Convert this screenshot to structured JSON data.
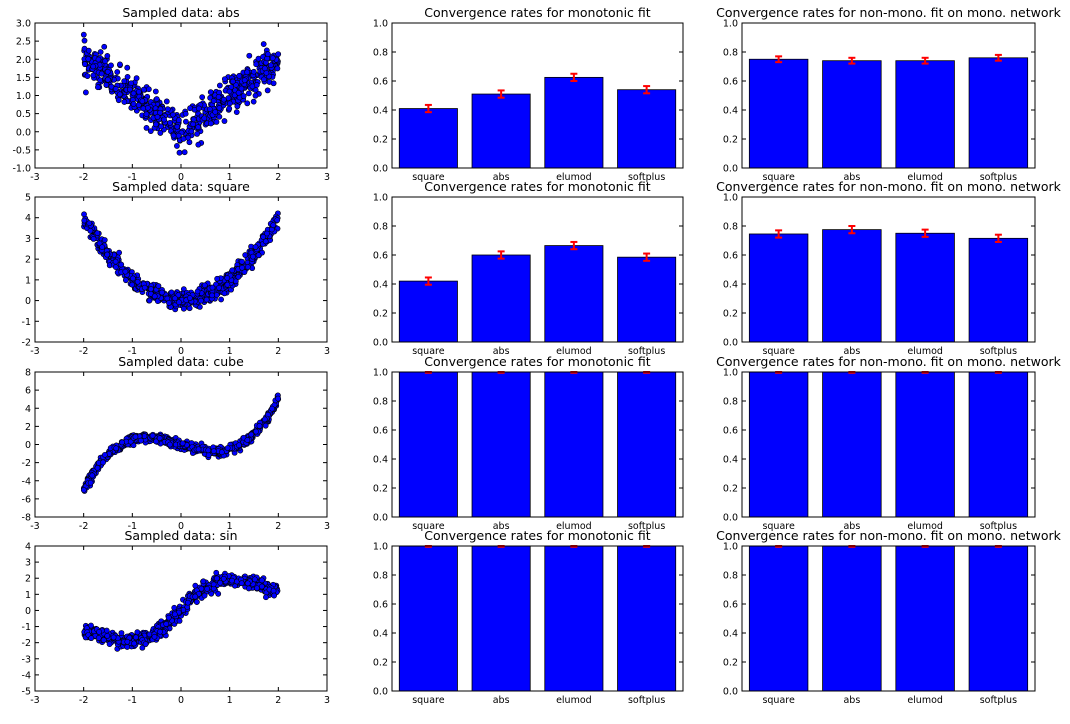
{
  "chart_data": [
    {
      "type": "scatter",
      "title": "Sampled data: abs",
      "function": "abs",
      "xlim": [
        -3,
        3
      ],
      "ylim": [
        -1.0,
        3.0
      ],
      "xticks": [
        "-3",
        "-2",
        "-1",
        "0",
        "1",
        "2",
        "3"
      ],
      "yticks": [
        "-1.0",
        "-0.5",
        "0.0",
        "0.5",
        "1.0",
        "1.5",
        "2.0",
        "2.5",
        "3.0"
      ],
      "x_range": [
        -2,
        2
      ],
      "noise": 0.25,
      "n_points": 600,
      "marker_color": "#0000ff"
    },
    {
      "type": "bar",
      "title": "Convergence rates for monotonic fit",
      "categories": [
        "square",
        "abs",
        "elumod",
        "softplus"
      ],
      "values": [
        0.41,
        0.51,
        0.625,
        0.54
      ],
      "errors": [
        0.025,
        0.025,
        0.025,
        0.025
      ],
      "ylim": [
        0.0,
        1.0
      ],
      "yticks": [
        "0.0",
        "0.2",
        "0.4",
        "0.6",
        "0.8",
        "1.0"
      ],
      "bar_color": "#0000ff",
      "error_color": "#ff0000"
    },
    {
      "type": "bar",
      "title": "Convergence rates for non-mono. fit on mono. network",
      "categories": [
        "square",
        "abs",
        "elumod",
        "softplus"
      ],
      "values": [
        0.75,
        0.74,
        0.74,
        0.76
      ],
      "errors": [
        0.02,
        0.02,
        0.02,
        0.02
      ],
      "ylim": [
        0.0,
        1.0
      ],
      "yticks": [
        "0.0",
        "0.2",
        "0.4",
        "0.6",
        "0.8",
        "1.0"
      ],
      "bar_color": "#0000ff",
      "error_color": "#ff0000"
    },
    {
      "type": "scatter",
      "title": "Sampled data: square",
      "function": "square",
      "xlim": [
        -3,
        3
      ],
      "ylim": [
        -2,
        5
      ],
      "xticks": [
        "-3",
        "-2",
        "-1",
        "0",
        "1",
        "2",
        "3"
      ],
      "yticks": [
        "-2",
        "-1",
        "0",
        "1",
        "2",
        "3",
        "4",
        "5"
      ],
      "x_range": [
        -2,
        2
      ],
      "noise": 0.22,
      "n_points": 600,
      "marker_color": "#0000ff"
    },
    {
      "type": "bar",
      "title": "Convergence rates for monotonic fit",
      "categories": [
        "square",
        "abs",
        "elumod",
        "softplus"
      ],
      "values": [
        0.42,
        0.6,
        0.665,
        0.585
      ],
      "errors": [
        0.025,
        0.025,
        0.025,
        0.025
      ],
      "ylim": [
        0.0,
        1.0
      ],
      "yticks": [
        "0.0",
        "0.2",
        "0.4",
        "0.6",
        "0.8",
        "1.0"
      ],
      "bar_color": "#0000ff",
      "error_color": "#ff0000"
    },
    {
      "type": "bar",
      "title": "Convergence rates for non-mono. fit on mono. network",
      "categories": [
        "square",
        "abs",
        "elumod",
        "softplus"
      ],
      "values": [
        0.745,
        0.775,
        0.75,
        0.715
      ],
      "errors": [
        0.025,
        0.025,
        0.025,
        0.025
      ],
      "ylim": [
        0.0,
        1.0
      ],
      "yticks": [
        "0.0",
        "0.2",
        "0.4",
        "0.6",
        "0.8",
        "1.0"
      ],
      "bar_color": "#0000ff",
      "error_color": "#ff0000"
    },
    {
      "type": "scatter",
      "title": "Sampled data: cube",
      "function": "cube",
      "xlim": [
        -3,
        3
      ],
      "ylim": [
        -8,
        8
      ],
      "xticks": [
        "-3",
        "-2",
        "-1",
        "0",
        "1",
        "2",
        "3"
      ],
      "yticks": [
        "-8",
        "-6",
        "-4",
        "-2",
        "0",
        "2",
        "4",
        "6",
        "8"
      ],
      "x_range": [
        -2,
        2
      ],
      "noise": 0.25,
      "n_points": 600,
      "marker_color": "#0000ff"
    },
    {
      "type": "bar",
      "title": "Convergence rates for monotonic fit",
      "categories": [
        "square",
        "abs",
        "elumod",
        "softplus"
      ],
      "values": [
        1.0,
        1.0,
        1.0,
        1.0
      ],
      "errors": [
        0.005,
        0.005,
        0.005,
        0.005
      ],
      "ylim": [
        0.0,
        1.0
      ],
      "yticks": [
        "0.0",
        "0.2",
        "0.4",
        "0.6",
        "0.8",
        "1.0"
      ],
      "bar_color": "#0000ff",
      "error_color": "#ff0000"
    },
    {
      "type": "bar",
      "title": "Convergence rates for non-mono. fit on mono. network",
      "categories": [
        "square",
        "abs",
        "elumod",
        "softplus"
      ],
      "values": [
        1.0,
        1.0,
        1.0,
        1.0
      ],
      "errors": [
        0.005,
        0.005,
        0.005,
        0.005
      ],
      "ylim": [
        0.0,
        1.0
      ],
      "yticks": [
        "0.0",
        "0.2",
        "0.4",
        "0.6",
        "0.8",
        "1.0"
      ],
      "bar_color": "#0000ff",
      "error_color": "#ff0000"
    },
    {
      "type": "scatter",
      "title": "Sampled data: sin",
      "function": "sin",
      "xlim": [
        -3,
        3
      ],
      "ylim": [
        -5,
        4
      ],
      "xticks": [
        "-3",
        "-2",
        "-1",
        "0",
        "1",
        "2",
        "3"
      ],
      "yticks": [
        "-5",
        "-4",
        "-3",
        "-2",
        "-1",
        "0",
        "1",
        "2",
        "3",
        "4"
      ],
      "x_range": [
        -2,
        2
      ],
      "noise": 0.22,
      "n_points": 600,
      "marker_color": "#0000ff"
    },
    {
      "type": "bar",
      "title": "Convergence rates for monotonic fit",
      "categories": [
        "square",
        "abs",
        "elumod",
        "softplus"
      ],
      "values": [
        1.0,
        1.0,
        1.0,
        1.0
      ],
      "errors": [
        0.005,
        0.005,
        0.005,
        0.005
      ],
      "ylim": [
        0.0,
        1.0
      ],
      "yticks": [
        "0.0",
        "0.2",
        "0.4",
        "0.6",
        "0.8",
        "1.0"
      ],
      "bar_color": "#0000ff",
      "error_color": "#ff0000"
    },
    {
      "type": "bar",
      "title": "Convergence rates for non-mono. fit on mono. network",
      "categories": [
        "square",
        "abs",
        "elumod",
        "softplus"
      ],
      "values": [
        1.0,
        1.0,
        1.0,
        1.0
      ],
      "errors": [
        0.005,
        0.005,
        0.005,
        0.005
      ],
      "ylim": [
        0.0,
        1.0
      ],
      "yticks": [
        "0.0",
        "0.2",
        "0.4",
        "0.6",
        "0.8",
        "1.0"
      ],
      "bar_color": "#0000ff",
      "error_color": "#ff0000"
    }
  ]
}
